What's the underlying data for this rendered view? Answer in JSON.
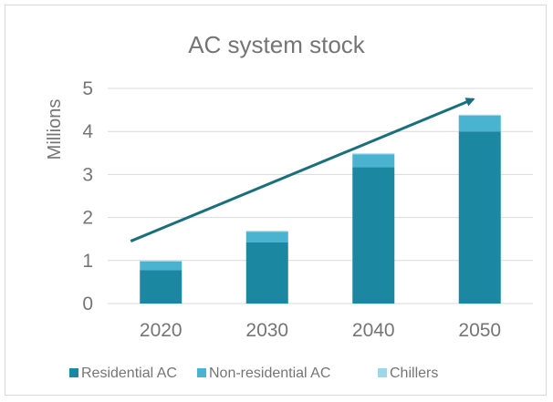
{
  "chart_data": {
    "type": "bar",
    "stacked": true,
    "title": "AC system stock",
    "xlabel": "",
    "ylabel": "Millions",
    "ylim": [
      0,
      5
    ],
    "yticks": [
      0,
      1,
      2,
      3,
      4,
      5
    ],
    "grid": true,
    "legend_position": "bottom",
    "categories": [
      "2020",
      "2030",
      "2040",
      "2050"
    ],
    "series": [
      {
        "name": "Residential AC",
        "values": [
          0.78,
          1.42,
          3.17,
          4.0
        ],
        "color": "#1c87a0"
      },
      {
        "name": "Non-residential AC",
        "values": [
          0.2,
          0.25,
          0.3,
          0.37
        ],
        "color": "#49b3d0"
      },
      {
        "name": "Chillers",
        "values": [
          0.02,
          0.02,
          0.02,
          0.02
        ],
        "color": "#9ed6ea"
      }
    ],
    "trend_arrow": {
      "from": [
        "2020",
        1.45
      ],
      "to": [
        "2050",
        4.75
      ],
      "color": "#1a6f7d"
    }
  }
}
